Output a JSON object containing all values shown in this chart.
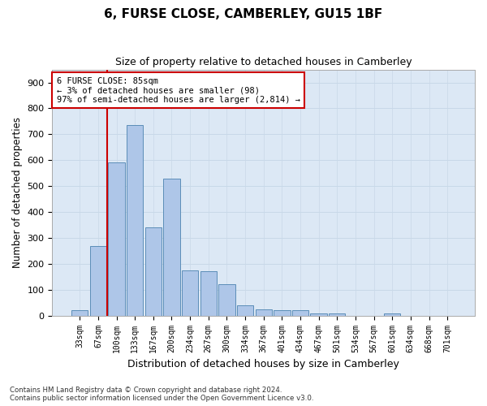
{
  "title": "6, FURSE CLOSE, CAMBERLEY, GU15 1BF",
  "subtitle": "Size of property relative to detached houses in Camberley",
  "xlabel": "Distribution of detached houses by size in Camberley",
  "ylabel": "Number of detached properties",
  "bar_labels": [
    "33sqm",
    "67sqm",
    "100sqm",
    "133sqm",
    "167sqm",
    "200sqm",
    "234sqm",
    "267sqm",
    "300sqm",
    "334sqm",
    "367sqm",
    "401sqm",
    "434sqm",
    "467sqm",
    "501sqm",
    "534sqm",
    "567sqm",
    "601sqm",
    "634sqm",
    "668sqm",
    "701sqm"
  ],
  "bar_values": [
    20,
    270,
    590,
    735,
    340,
    530,
    175,
    170,
    120,
    40,
    25,
    20,
    20,
    10,
    10,
    0,
    0,
    10,
    0,
    0,
    0
  ],
  "bar_color": "#aec6e8",
  "bar_edge_color": "#5b8db8",
  "annotation_box_text": "6 FURSE CLOSE: 85sqm\n← 3% of detached houses are smaller (98)\n97% of semi-detached houses are larger (2,814) →",
  "annotation_box_color": "#ffffff",
  "annotation_box_edge_color": "#cc0000",
  "vline_x": 1.5,
  "vline_color": "#cc0000",
  "ylim": [
    0,
    950
  ],
  "yticks": [
    0,
    100,
    200,
    300,
    400,
    500,
    600,
    700,
    800,
    900
  ],
  "grid_color": "#c8d8e8",
  "bg_color": "#dce8f5",
  "footer_line1": "Contains HM Land Registry data © Crown copyright and database right 2024.",
  "footer_line2": "Contains public sector information licensed under the Open Government Licence v3.0."
}
